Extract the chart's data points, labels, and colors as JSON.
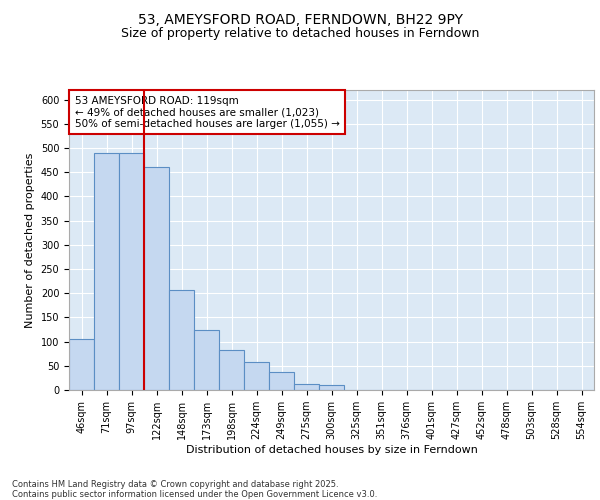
{
  "title": "53, AMEYSFORD ROAD, FERNDOWN, BH22 9PY",
  "subtitle": "Size of property relative to detached houses in Ferndown",
  "xlabel": "Distribution of detached houses by size in Ferndown",
  "ylabel": "Number of detached properties",
  "categories": [
    "46sqm",
    "71sqm",
    "97sqm",
    "122sqm",
    "148sqm",
    "173sqm",
    "198sqm",
    "224sqm",
    "249sqm",
    "275sqm",
    "300sqm",
    "325sqm",
    "351sqm",
    "376sqm",
    "401sqm",
    "427sqm",
    "452sqm",
    "478sqm",
    "503sqm",
    "528sqm",
    "554sqm"
  ],
  "values": [
    105,
    490,
    490,
    460,
    207,
    125,
    82,
    57,
    38,
    12,
    10,
    0,
    0,
    0,
    0,
    0,
    0,
    0,
    0,
    0,
    0
  ],
  "bar_color": "#c5d8f0",
  "bar_edge_color": "#5b8ec4",
  "bar_linewidth": 0.8,
  "grid_color": "#ffffff",
  "plot_bg_color": "#dce9f5",
  "fig_bg_color": "#ffffff",
  "ylim": [
    0,
    620
  ],
  "yticks": [
    0,
    50,
    100,
    150,
    200,
    250,
    300,
    350,
    400,
    450,
    500,
    550,
    600
  ],
  "annotation_box_text": "53 AMEYSFORD ROAD: 119sqm\n← 49% of detached houses are smaller (1,023)\n50% of semi-detached houses are larger (1,055) →",
  "vline_x": 2.5,
  "vline_color": "#cc0000",
  "footer": "Contains HM Land Registry data © Crown copyright and database right 2025.\nContains public sector information licensed under the Open Government Licence v3.0.",
  "title_fontsize": 10,
  "subtitle_fontsize": 9,
  "xlabel_fontsize": 8,
  "ylabel_fontsize": 8,
  "tick_fontsize": 7,
  "annotation_fontsize": 7.5,
  "footer_fontsize": 6
}
